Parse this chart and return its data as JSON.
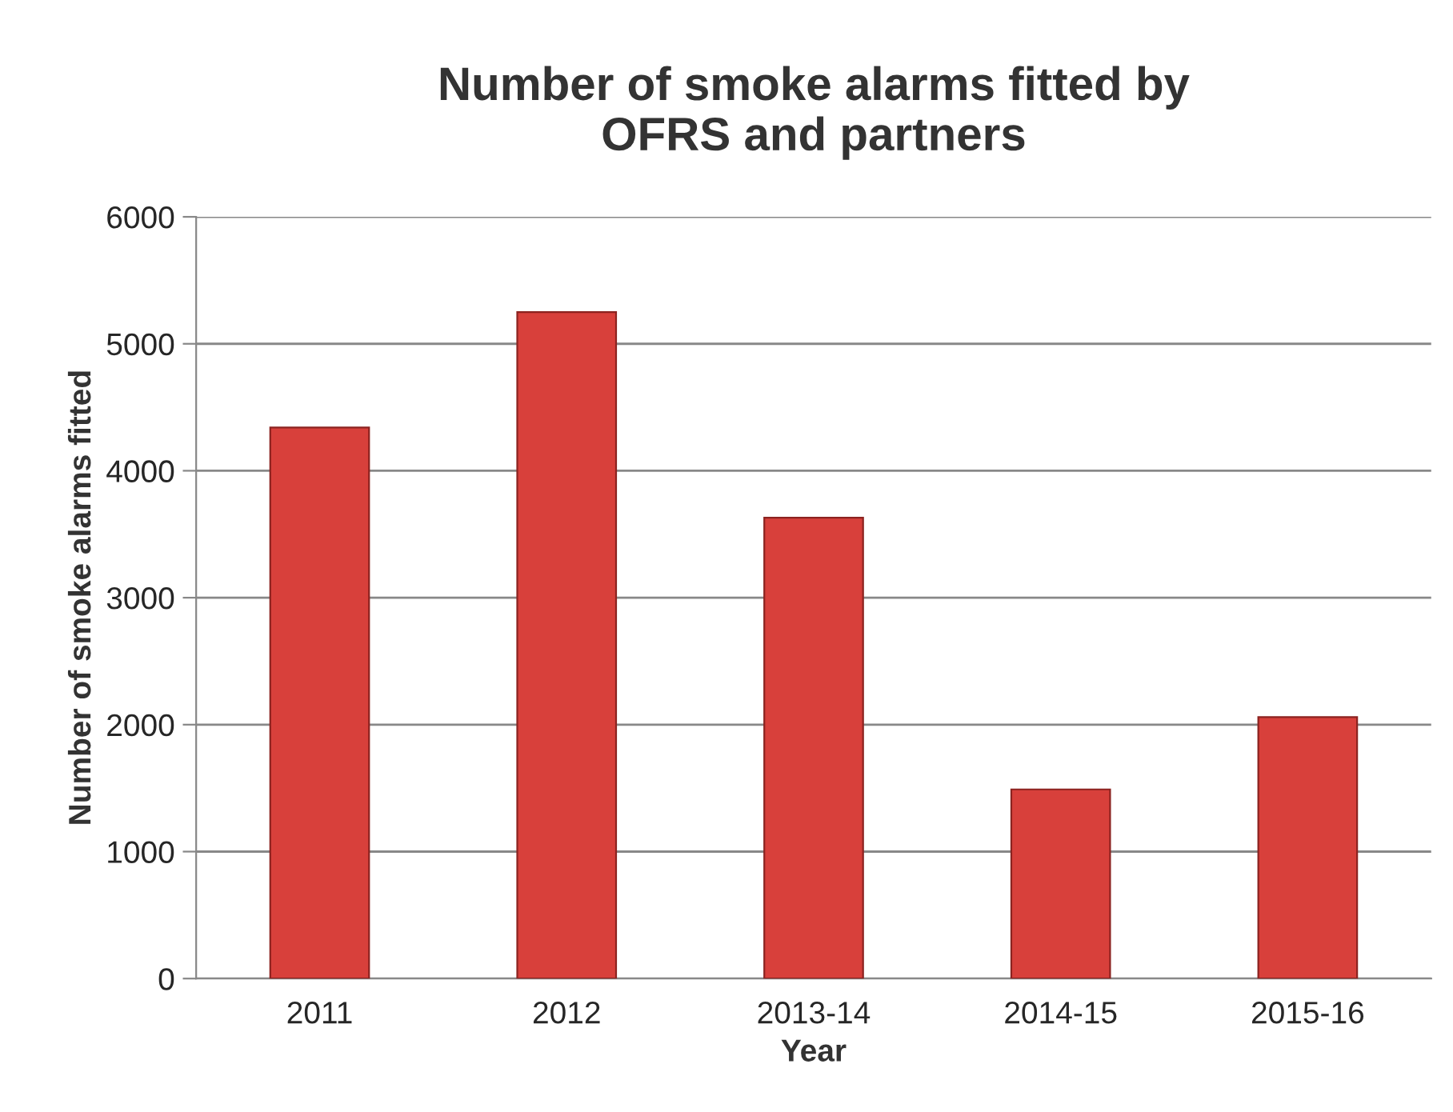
{
  "chart_data": {
    "type": "bar",
    "title": "Number of smoke alarms fitted by\nOFRS and partners",
    "xlabel": "Year",
    "ylabel": "Number of smoke alarms fitted",
    "categories": [
      "2011",
      "2012",
      "2013-14",
      "2014-15",
      "2015-16"
    ],
    "values": [
      4340,
      5250,
      3630,
      1490,
      2060
    ],
    "color": "#d8403b",
    "ylim": [
      0,
      6000
    ],
    "yticks": [
      0,
      1000,
      2000,
      3000,
      4000,
      5000,
      6000
    ],
    "grid": "y",
    "legend": false
  }
}
